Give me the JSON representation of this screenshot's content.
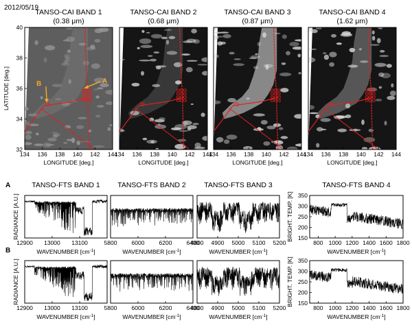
{
  "date": "2012/05/19",
  "cai": {
    "panels": [
      {
        "title": "TANSO-CAI BAND 1",
        "wavelength": "(0.38 μm)",
        "tone": 1
      },
      {
        "title": "TANSO-CAI BAND 2",
        "wavelength": "(0.68 μm)",
        "tone": 2
      },
      {
        "title": "TANSO-CAI BAND 3",
        "wavelength": "(0.87 μm)",
        "tone": 3
      },
      {
        "title": "TANSO-CAI BAND 4",
        "wavelength": "(1.62 μm)",
        "tone": 4
      }
    ],
    "xlabel": "LONGITUDE [deg.]",
    "ylabel": "LATITUDE [deg.]",
    "x_ticks": [
      "134",
      "136",
      "138",
      "140",
      "142",
      "144"
    ],
    "y_ticks": [
      "32",
      "34",
      "36",
      "38",
      "40"
    ],
    "annotation_a": "A",
    "annotation_b": "B",
    "track_color": "#e02020",
    "annotation_color": "#f5a623"
  },
  "fts": {
    "panel_labels": [
      "A",
      "B"
    ],
    "titles": [
      "TANSO-FTS BAND 1",
      "TANSO-FTS BAND 2",
      "TANSO-FTS BAND 3",
      "TANSO-FTS BAND 4"
    ],
    "ylabel_radiance": "RADIANCE [A.U.]",
    "ylabel_temp": "BRIGHT. TEMP. [K]",
    "xlabel_prefix": "WAVENUMBER [cm",
    "xlabel_sup": "-1",
    "xlabel_suffix": "]",
    "band_ticks": [
      [
        "12900",
        "13000",
        "13100"
      ],
      [
        "5800",
        "6000",
        "6200",
        "6400"
      ],
      [
        "4800",
        "4900",
        "5000",
        "5100",
        "5200"
      ],
      [
        "800",
        "1000",
        "1200",
        "1400",
        "1600",
        "1800"
      ]
    ],
    "temp_yticks": [
      "150",
      "200",
      "250",
      "300",
      "350"
    ]
  },
  "chart_data": [
    {
      "type": "line",
      "title": "TANSO-FTS BAND 1",
      "xlabel": "WAVENUMBER [cm-1]",
      "ylabel": "RADIANCE [A.U.]",
      "xlim": [
        12900,
        13200
      ],
      "series_shown": [
        "A",
        "B"
      ]
    },
    {
      "type": "line",
      "title": "TANSO-FTS BAND 2",
      "xlabel": "WAVENUMBER [cm-1]",
      "xlim": [
        5800,
        6400
      ],
      "series_shown": [
        "A",
        "B"
      ]
    },
    {
      "type": "line",
      "title": "TANSO-FTS BAND 3",
      "xlabel": "WAVENUMBER [cm-1]",
      "xlim": [
        4800,
        5200
      ],
      "series_shown": [
        "A",
        "B"
      ]
    },
    {
      "type": "line",
      "title": "TANSO-FTS BAND 4",
      "xlabel": "WAVENUMBER [cm-1]",
      "ylabel": "BRIGHT. TEMP. [K]",
      "xlim": [
        700,
        1800
      ],
      "ylim": [
        150,
        350
      ],
      "series_shown": [
        "A",
        "B"
      ]
    }
  ]
}
